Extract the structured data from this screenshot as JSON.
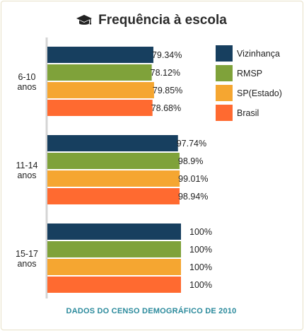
{
  "header": {
    "title": "Frequência à escola",
    "icon": "graduation-cap-icon"
  },
  "footer": {
    "source": "DADOS DO CENSO DEMOGRÁFICO DE 2010"
  },
  "chart_data": {
    "type": "bar",
    "orientation": "horizontal",
    "title": "Frequência à escola",
    "categories": [
      "6-10 anos",
      "11-14 anos",
      "15-17 anos"
    ],
    "category_label_lines": [
      [
        "6-10",
        "anos"
      ],
      [
        "11-14",
        "anos"
      ],
      [
        "15-17",
        "anos"
      ]
    ],
    "series": [
      {
        "name": "Vizinhança",
        "color": "#173f5f",
        "values": [
          79.34,
          97.74,
          100
        ],
        "labels": [
          "79.34%",
          "97.74%",
          "100%"
        ]
      },
      {
        "name": "RMSP",
        "color": "#7fa23a",
        "values": [
          78.12,
          98.9,
          100
        ],
        "labels": [
          "78.12%",
          "98.9%",
          "100%"
        ]
      },
      {
        "name": "SP(Estado)",
        "color": "#f5a631",
        "values": [
          79.85,
          99.01,
          100
        ],
        "labels": [
          "79.85%",
          "99.01%",
          "100%"
        ]
      },
      {
        "name": "Brasil",
        "color": "#ff6a30",
        "values": [
          78.68,
          98.94,
          100
        ],
        "labels": [
          "78.68%",
          "98.94%",
          "100%"
        ]
      }
    ],
    "xlim": [
      0,
      100
    ],
    "grid": false,
    "legend_position": "top-right"
  }
}
